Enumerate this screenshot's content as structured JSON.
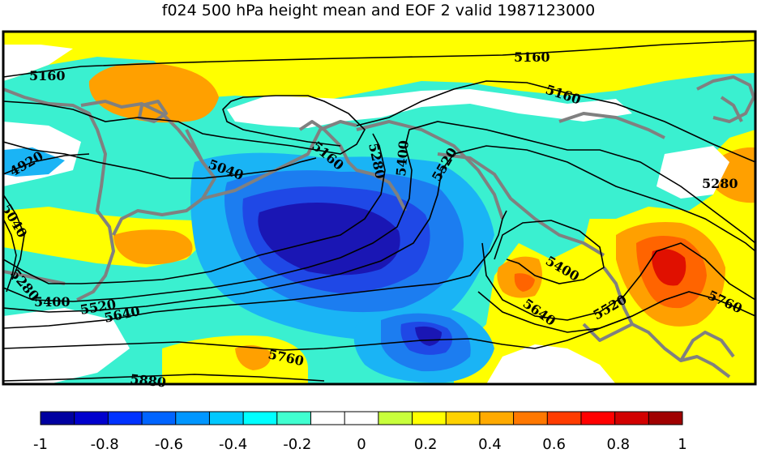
{
  "title": "f024 500 hPa height mean and EOF 2 valid 1987123000",
  "contour_labels": {
    "c5160_a": "5160",
    "c5160_b": "5160",
    "c5160_c": "5160",
    "c5160_d": "5160",
    "c4920": "4920",
    "c5040_a": "5040",
    "c5040_b": "5040",
    "c5280_a": "5280",
    "c5280_b": "5280",
    "c5280_c": "5280",
    "c5400_a": "5400",
    "c5400_b": "5400",
    "c5400_c": "5400",
    "c5520_a": "5520",
    "c5520_b": "5520",
    "c5520_c": "5520",
    "c5640_a": "5640",
    "c5640_b": "5640",
    "c5760_a": "5760",
    "c5760_b": "5760",
    "c5880": "5880"
  },
  "colorbar": {
    "ticks": [
      "-1",
      "-0.8",
      "-0.6",
      "-0.4",
      "-0.2",
      "0",
      "0.2",
      "0.4",
      "0.6",
      "0.8",
      "1"
    ],
    "colors": [
      "#0000a0",
      "#0000cd",
      "#0032ff",
      "#0064ff",
      "#0096ff",
      "#00c8ff",
      "#00ffff",
      "#40ffd0",
      "#ffffff",
      "#ffffff",
      "#c8ff3c",
      "#ffff00",
      "#ffd200",
      "#ffaa00",
      "#ff7800",
      "#ff3c00",
      "#ff0000",
      "#d20000",
      "#a00000"
    ]
  },
  "palette": {
    "dark_blue": "#1a16b4",
    "blue": "#1f48e6",
    "mid_blue": "#1c7df0",
    "light_blue": "#1ab4f5",
    "cyan": "#3af0d0",
    "white": "#ffffff",
    "yellow": "#ffff00",
    "gold": "#ffd200",
    "orange": "#ffa000",
    "dark_orange": "#ff6400",
    "red": "#e01000",
    "coast": "#808080"
  }
}
